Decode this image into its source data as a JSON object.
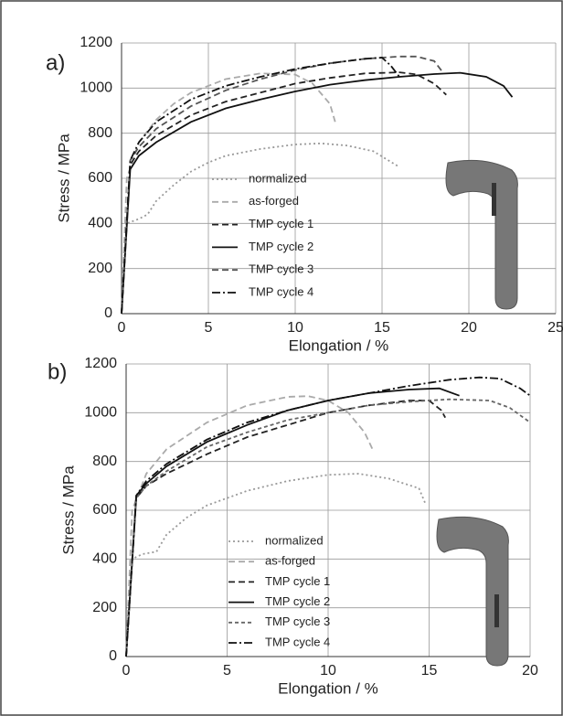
{
  "chart_data": [
    {
      "type": "line",
      "panel_label": "a)",
      "x_label": "Elongation / %",
      "y_label": "Stress / MPa",
      "xlim": [
        0,
        25
      ],
      "xticks": [
        0,
        5,
        10,
        15,
        20,
        25
      ],
      "ylim": [
        0,
        1200
      ],
      "yticks": [
        0,
        200,
        400,
        600,
        800,
        1000,
        1200
      ],
      "grid": true,
      "series": [
        {
          "name": "normalized",
          "color": "#999999",
          "style": "dotted",
          "x": [
            0,
            0.3,
            1,
            1.5,
            2,
            3,
            4,
            5,
            6,
            8,
            10,
            11.5,
            13,
            14.5,
            16
          ],
          "values": [
            0,
            400,
            420,
            440,
            500,
            570,
            630,
            670,
            700,
            730,
            750,
            755,
            745,
            720,
            650
          ]
        },
        {
          "name": "as-forged",
          "color": "#aaaaaa",
          "style": "dashed",
          "x": [
            0,
            0.3,
            1,
            2,
            3,
            4,
            5,
            6,
            8,
            10,
            11,
            12,
            12.3
          ],
          "values": [
            0,
            600,
            760,
            860,
            930,
            980,
            1010,
            1040,
            1065,
            1060,
            1020,
            930,
            850
          ]
        },
        {
          "name": "TMP cycle 1",
          "color": "#222222",
          "style": "dashed",
          "x": [
            0,
            0.5,
            1,
            2,
            4,
            6,
            8,
            10,
            12,
            14,
            16,
            17,
            18,
            18.7
          ],
          "values": [
            0,
            660,
            720,
            790,
            880,
            940,
            980,
            1020,
            1045,
            1065,
            1070,
            1060,
            1020,
            970
          ]
        },
        {
          "name": "TMP cycle 2",
          "color": "#111111",
          "style": "solid",
          "x": [
            0,
            0.5,
            1,
            2,
            4,
            6,
            8,
            10,
            12,
            14,
            16,
            18,
            19.5,
            21,
            22,
            22.5
          ],
          "values": [
            0,
            640,
            700,
            760,
            850,
            910,
            950,
            985,
            1015,
            1035,
            1050,
            1062,
            1068,
            1050,
            1010,
            960
          ]
        },
        {
          "name": "TMP cycle 3",
          "color": "#555555",
          "style": "dashed",
          "x": [
            0,
            0.5,
            1,
            2,
            4,
            6,
            8,
            10,
            12,
            14,
            16,
            17,
            18,
            18.5
          ],
          "values": [
            0,
            680,
            740,
            820,
            920,
            990,
            1040,
            1080,
            1110,
            1130,
            1140,
            1140,
            1120,
            1070
          ]
        },
        {
          "name": "TMP cycle 4",
          "color": "#111111",
          "style": "dash-dot",
          "x": [
            0,
            0.5,
            1,
            2,
            4,
            6,
            8,
            10,
            12,
            14,
            15,
            15.5,
            16
          ],
          "values": [
            0,
            680,
            760,
            850,
            950,
            1010,
            1050,
            1085,
            1110,
            1130,
            1135,
            1100,
            1050
          ]
        }
      ]
    },
    {
      "type": "line",
      "panel_label": "b)",
      "x_label": "Elongation / %",
      "y_label": "Stress / MPa",
      "xlim": [
        0,
        20
      ],
      "xticks": [
        0,
        5,
        10,
        15,
        20
      ],
      "ylim": [
        0,
        1200
      ],
      "yticks": [
        0,
        200,
        400,
        600,
        800,
        1000,
        1200
      ],
      "grid": true,
      "series": [
        {
          "name": "normalized",
          "color": "#999999",
          "style": "dotted",
          "x": [
            0,
            0.3,
            0.8,
            1.5,
            2,
            3,
            4,
            6,
            8,
            10,
            11.5,
            13,
            14.5,
            14.8
          ],
          "values": [
            0,
            400,
            420,
            430,
            500,
            570,
            620,
            680,
            720,
            745,
            750,
            730,
            690,
            630
          ]
        },
        {
          "name": "as-forged",
          "color": "#aaaaaa",
          "style": "dashed",
          "x": [
            0,
            0.3,
            1,
            2,
            4,
            6,
            8,
            9,
            10,
            11,
            11.8,
            12.2
          ],
          "values": [
            0,
            600,
            750,
            850,
            960,
            1030,
            1065,
            1068,
            1050,
            1000,
            920,
            850
          ]
        },
        {
          "name": "TMP cycle 1",
          "color": "#222222",
          "style": "dashed",
          "x": [
            0,
            0.5,
            1,
            2,
            4,
            6,
            8,
            10,
            12,
            14,
            15,
            15.6,
            15.8
          ],
          "values": [
            0,
            650,
            700,
            750,
            830,
            900,
            950,
            1000,
            1030,
            1050,
            1050,
            1010,
            980
          ]
        },
        {
          "name": "TMP cycle 2",
          "color": "#111111",
          "style": "solid",
          "x": [
            0,
            0.5,
            1,
            2,
            4,
            6,
            8,
            10,
            12,
            14,
            15.5,
            16.5
          ],
          "values": [
            0,
            660,
            710,
            780,
            880,
            950,
            1010,
            1050,
            1080,
            1095,
            1100,
            1070
          ]
        },
        {
          "name": "TMP cycle 3",
          "color": "#666666",
          "style": "short-dash",
          "x": [
            0,
            0.5,
            1,
            2,
            4,
            6,
            8,
            10,
            12,
            14,
            16,
            18,
            19,
            20
          ],
          "values": [
            0,
            650,
            700,
            760,
            860,
            920,
            970,
            1000,
            1030,
            1045,
            1055,
            1050,
            1020,
            960
          ]
        },
        {
          "name": "TMP cycle 4",
          "color": "#111111",
          "style": "dash-dot",
          "x": [
            0,
            0.5,
            1,
            2,
            4,
            6,
            8,
            10,
            12,
            14,
            16,
            17.5,
            18.5,
            19.5,
            20
          ],
          "values": [
            0,
            660,
            720,
            790,
            890,
            960,
            1010,
            1050,
            1080,
            1110,
            1135,
            1145,
            1140,
            1100,
            1070
          ]
        }
      ]
    }
  ]
}
